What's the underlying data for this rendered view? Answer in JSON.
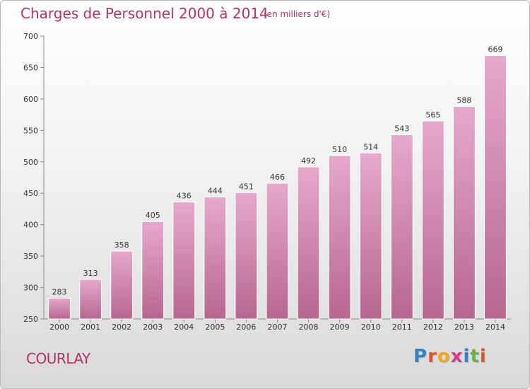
{
  "header": {
    "title": "Charges de Personnel 2000 à 2014",
    "subtitle": "(en milliers d'€)"
  },
  "footer": {
    "commune": "COURLAY",
    "logo_letters": [
      "P",
      "r",
      "o",
      "x",
      "i",
      "t",
      "i"
    ],
    "logo_colors": [
      "#2f86c6",
      "#e0552d",
      "#f0a81e",
      "#d63a8a",
      "#2f86c6",
      "#6ab245",
      "#e0552d"
    ]
  },
  "colors": {
    "bar_top": "#e6a8cc",
    "bar_bottom": "#b7678f",
    "bar_edge": "#ffffff",
    "title": "#b0336a"
  },
  "chart_data": {
    "type": "bar",
    "categories": [
      "2000",
      "2001",
      "2002",
      "2003",
      "2004",
      "2005",
      "2006",
      "2007",
      "2008",
      "2009",
      "2010",
      "2011",
      "2012",
      "2013",
      "2014"
    ],
    "values": [
      283,
      313,
      358,
      405,
      436,
      444,
      451,
      466,
      492,
      510,
      514,
      543,
      565,
      588,
      669
    ],
    "title": "Charges de Personnel 2000 à 2014",
    "ylim": [
      250,
      700
    ],
    "yticks": [
      250,
      300,
      350,
      400,
      450,
      500,
      550,
      600,
      650,
      700
    ],
    "grid": false,
    "legend": "none"
  }
}
